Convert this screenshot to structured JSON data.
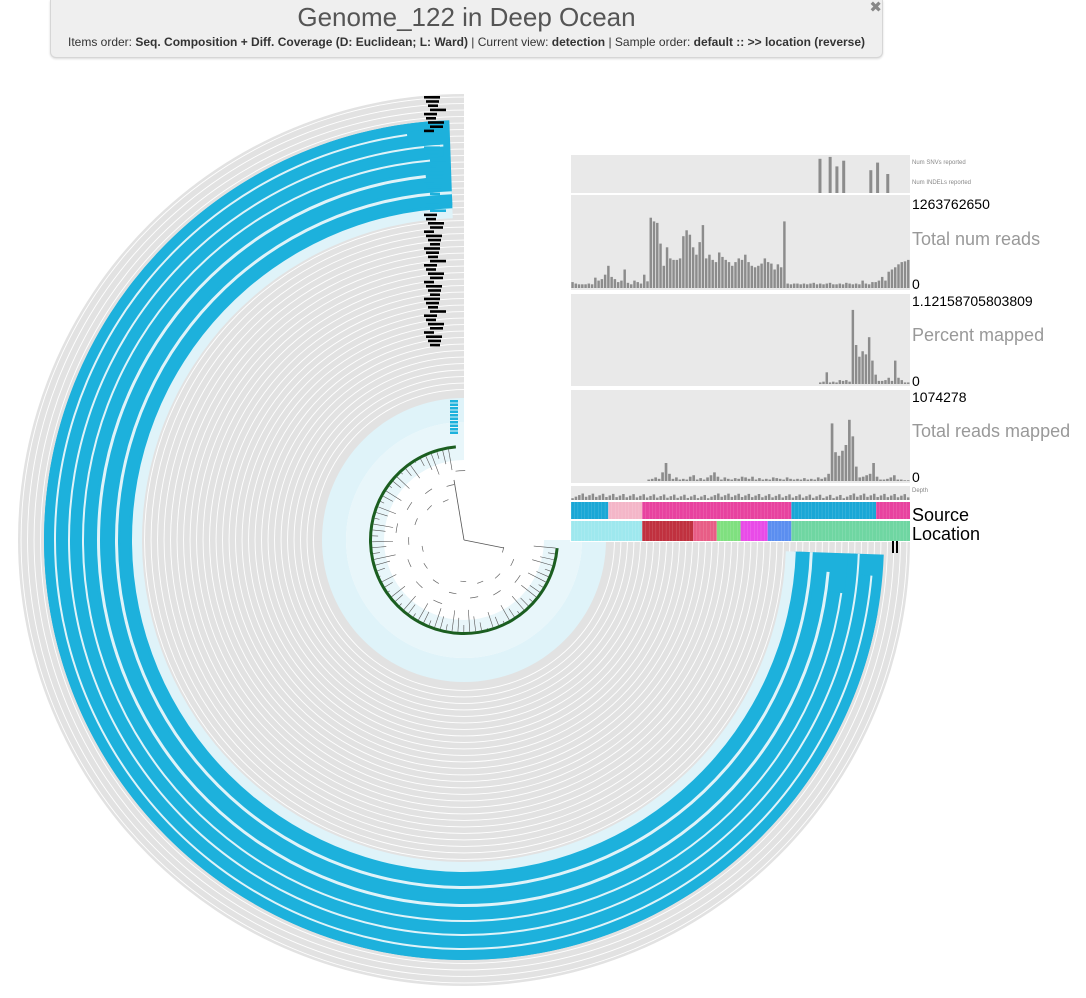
{
  "header": {
    "title": "Genome_122 in Deep Ocean",
    "items_order_label": "Items order:",
    "items_order_value": "Seq. Composition + Diff. Coverage (D: Euclidean; L: Ward)",
    "current_view_label": "Current view:",
    "current_view_value": "detection",
    "sample_order_label": "Sample order:",
    "sample_order_value": "default :: >> location (reverse)",
    "close_glyph": "✖"
  },
  "layers": {
    "num_snvs": {
      "label": "Num SNVs reported"
    },
    "num_indels": {
      "label": "Num INDELs reported"
    },
    "total_num_reads": {
      "label": "Total num reads",
      "max": "1263762650",
      "min": "0"
    },
    "percent_mapped": {
      "label": "Percent mapped",
      "max": "1.12158705803809",
      "min": "0"
    },
    "total_reads_mapped": {
      "label": "Total reads mapped",
      "max": "1074278",
      "min": "0"
    },
    "depth": {
      "label": "Depth"
    },
    "source": {
      "label": "Source"
    },
    "location": {
      "label": "Location"
    }
  },
  "colors": {
    "ring_gray": "#e2e2e2",
    "ring_blue": "#1db1dc",
    "ring_light_blue": "#dff3f9",
    "bar_gray": "#8c8c8c",
    "panel_bg": "#e9e9e9",
    "source_palette": [
      "#1aa7d6",
      "#f4b6c8",
      "#e8429f",
      "#1aa7d6",
      "#e8429f"
    ],
    "location_palette": [
      "#9ee8ee",
      "#c0313f",
      "#e85d86",
      "#7fe07f",
      "#e94be8",
      "#5b8ef0",
      "#6fd6a2"
    ]
  },
  "chart_data": [
    {
      "type": "bar",
      "name": "Total num reads",
      "ylim": [
        0,
        1263762650
      ],
      "values": [
        0.08,
        0.06,
        0.05,
        0.05,
        0.05,
        0.06,
        0.05,
        0.14,
        0.1,
        0.12,
        0.18,
        0.3,
        0.15,
        0.12,
        0.08,
        0.1,
        0.25,
        0.07,
        0.05,
        0.1,
        0.08,
        0.06,
        0.18,
        0.09,
        0.95,
        0.9,
        0.88,
        0.6,
        0.3,
        0.55,
        0.4,
        0.38,
        0.38,
        0.4,
        0.7,
        0.78,
        0.72,
        0.55,
        0.45,
        0.62,
        0.85,
        0.4,
        0.45,
        0.38,
        0.35,
        0.48,
        0.42,
        0.38,
        0.35,
        0.3,
        0.35,
        0.4,
        0.38,
        0.45,
        0.35,
        0.3,
        0.28,
        0.3,
        0.33,
        0.4,
        0.35,
        0.33,
        0.25,
        0.32,
        0.28,
        0.9,
        0.06,
        0.05,
        0.06,
        0.06,
        0.05,
        0.06,
        0.05,
        0.06,
        0.07,
        0.05,
        0.06,
        0.05,
        0.06,
        0.07,
        0.05,
        0.05,
        0.06,
        0.05,
        0.07,
        0.06,
        0.05,
        0.06,
        0.05,
        0.1,
        0.06,
        0.05,
        0.08,
        0.08,
        0.1,
        0.15,
        0.1,
        0.22,
        0.25,
        0.28,
        0.32,
        0.35,
        0.36,
        0.38
      ]
    },
    {
      "type": "bar",
      "name": "Percent mapped",
      "ylim": [
        0,
        1.12158705803809
      ],
      "values": [
        0,
        0,
        0,
        0,
        0,
        0,
        0,
        0,
        0,
        0,
        0,
        0,
        0,
        0,
        0,
        0,
        0,
        0,
        0,
        0,
        0,
        0,
        0,
        0,
        0,
        0,
        0,
        0,
        0,
        0,
        0,
        0,
        0,
        0,
        0,
        0,
        0,
        0,
        0,
        0,
        0,
        0,
        0,
        0,
        0,
        0,
        0,
        0,
        0,
        0,
        0,
        0,
        0,
        0,
        0,
        0,
        0,
        0,
        0,
        0,
        0,
        0,
        0,
        0,
        0,
        0,
        0,
        0,
        0,
        0,
        0,
        0,
        0,
        0,
        0,
        0,
        0.02,
        0.03,
        0.15,
        0.02,
        0.03,
        0.02,
        0.05,
        0.04,
        0.05,
        0.03,
        0.95,
        0.5,
        0.35,
        0.42,
        0.38,
        0.6,
        0.3,
        0.12,
        0.04,
        0.04,
        0.05,
        0.08,
        0.04,
        0.3,
        0.08,
        0.05,
        0.02,
        0.02
      ]
    },
    {
      "type": "bar",
      "name": "Total reads mapped",
      "ylim": [
        0,
        1074278
      ],
      "values": [
        0,
        0,
        0,
        0,
        0,
        0,
        0,
        0,
        0,
        0,
        0,
        0,
        0,
        0,
        0,
        0,
        0,
        0,
        0,
        0,
        0,
        0,
        0.02,
        0.03,
        0.05,
        0.03,
        0.12,
        0.25,
        0.1,
        0.03,
        0.05,
        0.02,
        0.03,
        0.02,
        0.06,
        0.08,
        0.02,
        0.04,
        0.02,
        0.05,
        0.08,
        0.12,
        0.06,
        0.02,
        0.05,
        0.03,
        0.02,
        0.04,
        0.03,
        0.06,
        0.05,
        0.03,
        0.06,
        0.02,
        0.04,
        0.02,
        0.03,
        0.02,
        0.05,
        0.04,
        0.03,
        0.02,
        0.05,
        0.03,
        0.02,
        0.03,
        0.02,
        0.04,
        0.02,
        0.03,
        0.02,
        0.05,
        0.03,
        0.05,
        0.1,
        0.8,
        0.4,
        0.35,
        0.42,
        0.5,
        0.85,
        0.62,
        0.2,
        0.05,
        0.06,
        0.08,
        0.1,
        0.25,
        0.06,
        0.02,
        0.02,
        0.03,
        0.05,
        0.08,
        0.02,
        0.02,
        0.01,
        0.01
      ]
    }
  ]
}
